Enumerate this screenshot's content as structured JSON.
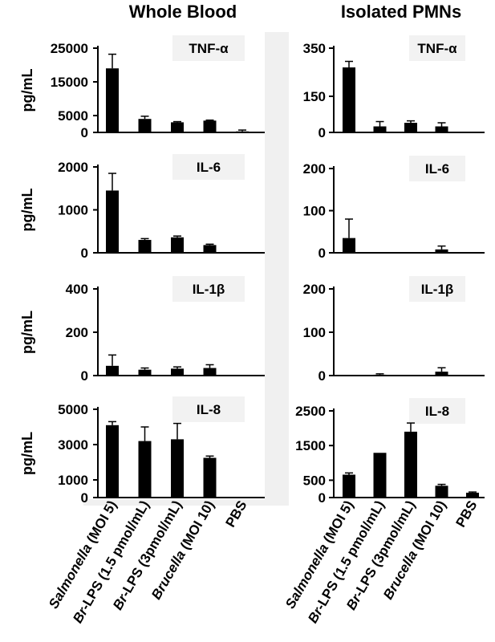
{
  "chart_data": {
    "type": "bar",
    "categories_parts": [
      [
        {
          "text": "Salmonella",
          "italic": true
        },
        {
          "text": " (MOI 5)",
          "italic": false
        }
      ],
      [
        {
          "text": "Br",
          "italic": true
        },
        {
          "text": "-LPS (1.5 pmol/mL)",
          "italic": false
        }
      ],
      [
        {
          "text": "Br",
          "italic": true
        },
        {
          "text": "-LPS (3pmol/mL)",
          "italic": false
        }
      ],
      [
        {
          "text": "Brucella",
          "italic": true
        },
        {
          "text": " (MOI 10)",
          "italic": false
        }
      ],
      [
        {
          "text": "PBS",
          "italic": false
        }
      ]
    ],
    "categories": [
      "Salmonella (MOI 5)",
      "Br-LPS (1.5 pmol/mL)",
      "Br-LPS (3pmol/mL)",
      "Brucella (MOI 10)",
      "PBS"
    ],
    "columns": [
      "Whole Blood",
      "Isolated PMNs"
    ],
    "ylabel": "pg/mL",
    "panels": [
      {
        "label": "TNF-α",
        "column": 0,
        "row": 0,
        "ylim": [
          0,
          25000
        ],
        "yticks": [
          0,
          5000,
          15000,
          25000
        ],
        "values": [
          19000,
          4000,
          3000,
          3500,
          300
        ],
        "errors": [
          4200,
          800,
          200,
          150,
          400
        ]
      },
      {
        "label": "TNF-α",
        "column": 1,
        "row": 0,
        "ylim": [
          0,
          350
        ],
        "yticks": [
          0,
          150,
          350
        ],
        "values": [
          270,
          25,
          40,
          25,
          0
        ],
        "errors": [
          25,
          20,
          8,
          15,
          0
        ]
      },
      {
        "label": "IL-6",
        "column": 0,
        "row": 1,
        "ylim": [
          0,
          2000
        ],
        "yticks": [
          0,
          1000,
          2000
        ],
        "values": [
          1450,
          300,
          360,
          180,
          0
        ],
        "errors": [
          400,
          30,
          30,
          20,
          0
        ]
      },
      {
        "label": "IL-6",
        "column": 1,
        "row": 1,
        "ylim": [
          0,
          200
        ],
        "yticks": [
          0,
          100,
          200
        ],
        "values": [
          35,
          0,
          0,
          8,
          0
        ],
        "errors": [
          45,
          0,
          0,
          8,
          0
        ]
      },
      {
        "label": "IL-1β",
        "column": 0,
        "row": 2,
        "ylim": [
          0,
          400
        ],
        "yticks": [
          0,
          200,
          400
        ],
        "values": [
          45,
          27,
          32,
          35,
          0
        ],
        "errors": [
          50,
          8,
          8,
          15,
          0
        ]
      },
      {
        "label": "IL-1β",
        "column": 1,
        "row": 2,
        "ylim": [
          0,
          200
        ],
        "yticks": [
          0,
          100,
          200
        ],
        "values": [
          0,
          2,
          0,
          9,
          0
        ],
        "errors": [
          0,
          2,
          0,
          9,
          0
        ]
      },
      {
        "label": "IL-8",
        "column": 0,
        "row": 3,
        "ylim": [
          0,
          5000
        ],
        "yticks": [
          0,
          1000,
          3000,
          5000
        ],
        "values": [
          4100,
          3200,
          3300,
          2250,
          0
        ],
        "errors": [
          200,
          800,
          900,
          100,
          0
        ]
      },
      {
        "label": "IL-8",
        "column": 1,
        "row": 3,
        "ylim": [
          0,
          2500
        ],
        "yticks": [
          0,
          500,
          1500,
          2500
        ],
        "values": [
          660,
          1290,
          1900,
          340,
          140
        ],
        "errors": [
          50,
          0,
          250,
          40,
          20
        ]
      }
    ],
    "colors": {
      "bar": "#000000",
      "label_bg": "#f2f2f2",
      "column_gap": "#f0f0f0"
    }
  }
}
